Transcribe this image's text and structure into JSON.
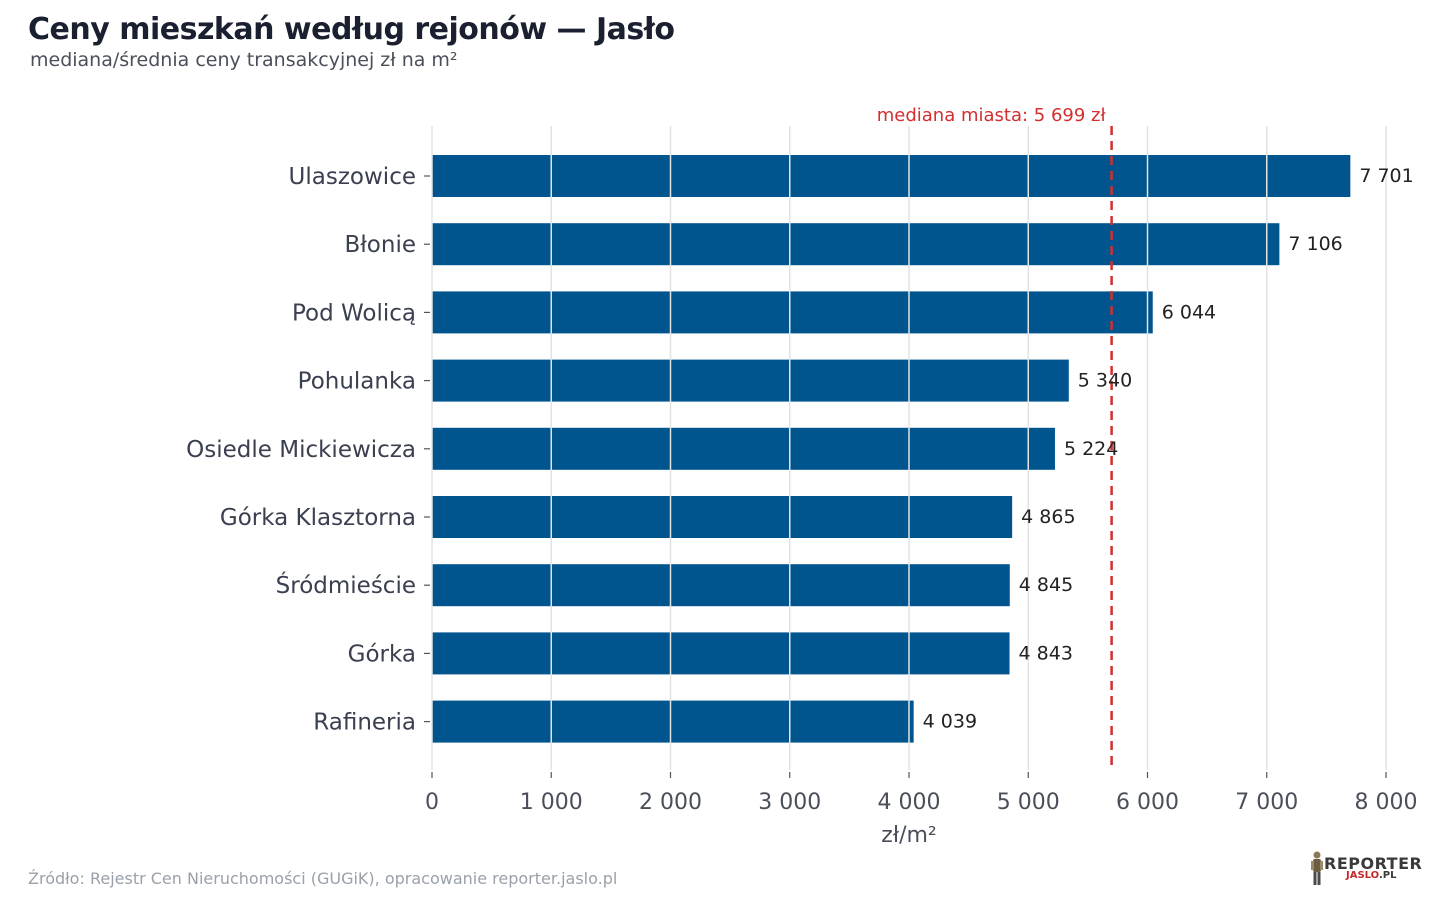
{
  "header": {
    "title": "Ceny mieszkań według rejonów — Jasło",
    "subtitle": "mediana/średnia ceny transakcyjnej zł na m²"
  },
  "footer": {
    "source": "Źródło: Rejestr Cen Nieruchomości (GUGiK), opracowanie reporter.jaslo.pl"
  },
  "logo": {
    "main": "REPORTER",
    "sub_red": "JASLO",
    "sub_dark": ".PL"
  },
  "colors": {
    "bar": "#00558f",
    "median_line": "#d32f2f",
    "grid": "#e3e3e3"
  },
  "chart_data": {
    "type": "bar",
    "orientation": "horizontal",
    "categories": [
      "Ulaszowice",
      "Błonie",
      "Pod Wolicą",
      "Pohulanka",
      "Osiedle Mickiewicza",
      "Górka Klasztorna",
      "Śródmieście",
      "Górka",
      "Rafineria"
    ],
    "values": [
      7701,
      7106,
      6044,
      5340,
      5224,
      4865,
      4845,
      4843,
      4039
    ],
    "value_labels": [
      "7 701",
      "7 106",
      "6 044",
      "5 340",
      "5 224",
      "4 865",
      "4 845",
      "4 843",
      "4 039"
    ],
    "xlabel": "zł/m²",
    "xlim": [
      0,
      8000
    ],
    "xticks": [
      0,
      1000,
      2000,
      3000,
      4000,
      5000,
      6000,
      7000,
      8000
    ],
    "xtick_labels": [
      "0",
      "1 000",
      "2 000",
      "3 000",
      "4 000",
      "5 000",
      "6 000",
      "7 000",
      "8 000"
    ],
    "grid": true,
    "reference_line": {
      "value": 5699,
      "label": "mediana miasta: 5 699 zł"
    }
  }
}
